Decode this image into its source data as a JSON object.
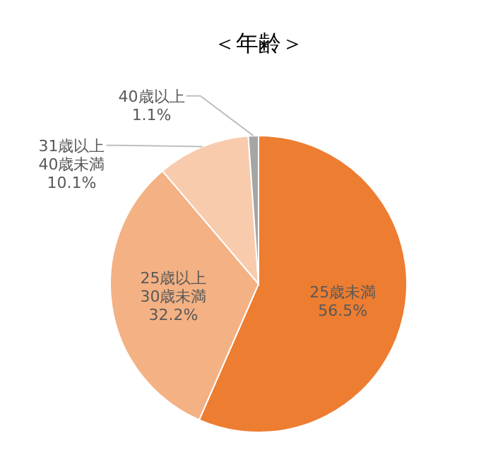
{
  "chart_data": {
    "type": "pie",
    "title": "＜年齢＞",
    "categories": [
      "25歳未満",
      "25歳以上\n30歳未満",
      "31歳以上\n40歳未満",
      "40歳以上"
    ],
    "values": [
      56.5,
      32.2,
      10.1,
      1.1
    ],
    "value_labels": [
      "56.5%",
      "32.2%",
      "10.1%",
      "1.1%"
    ],
    "colors": [
      "#ed7d31",
      "#f4b183",
      "#f8cbad",
      "#a5a5a5"
    ]
  }
}
